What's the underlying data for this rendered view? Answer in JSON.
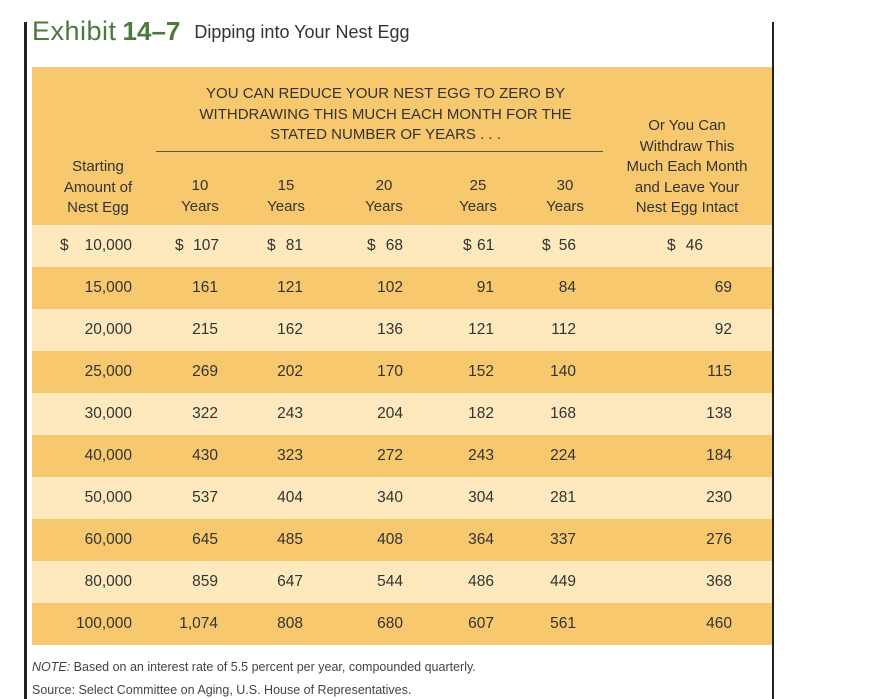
{
  "exhibit": {
    "label": "Exhibit",
    "number": "14–7",
    "title": "Dipping into Your Nest Egg"
  },
  "table": {
    "group_header": [
      "YOU CAN REDUCE YOUR NEST EGG TO ZERO BY",
      "WITHDRAWING THIS MUCH EACH MONTH FOR THE",
      "STATED NUMBER OF YEARS . . ."
    ],
    "starting_header": [
      "Starting",
      "Amount of",
      "Nest Egg"
    ],
    "intact_header": [
      "Or You Can",
      "Withdraw This",
      "Much Each Month",
      "and Leave Your",
      "Nest Egg Intact"
    ],
    "year_columns": [
      {
        "num": "10",
        "unit": "Years"
      },
      {
        "num": "15",
        "unit": "Years"
      },
      {
        "num": "20",
        "unit": "Years"
      },
      {
        "num": "25",
        "unit": "Years"
      },
      {
        "num": "30",
        "unit": "Years"
      }
    ],
    "currency_symbol": "$",
    "rows": [
      {
        "start": "10,000",
        "v10": "107",
        "v15": "81",
        "v20": "68",
        "v25": "61",
        "v30": "56",
        "intact": "46"
      },
      {
        "start": "15,000",
        "v10": "161",
        "v15": "121",
        "v20": "102",
        "v25": "91",
        "v30": "84",
        "intact": "69"
      },
      {
        "start": "20,000",
        "v10": "215",
        "v15": "162",
        "v20": "136",
        "v25": "121",
        "v30": "112",
        "intact": "92"
      },
      {
        "start": "25,000",
        "v10": "269",
        "v15": "202",
        "v20": "170",
        "v25": "152",
        "v30": "140",
        "intact": "115"
      },
      {
        "start": "30,000",
        "v10": "322",
        "v15": "243",
        "v20": "204",
        "v25": "182",
        "v30": "168",
        "intact": "138"
      },
      {
        "start": "40,000",
        "v10": "430",
        "v15": "323",
        "v20": "272",
        "v25": "243",
        "v30": "224",
        "intact": "184"
      },
      {
        "start": "50,000",
        "v10": "537",
        "v15": "404",
        "v20": "340",
        "v25": "304",
        "v30": "281",
        "intact": "230"
      },
      {
        "start": "60,000",
        "v10": "645",
        "v15": "485",
        "v20": "408",
        "v25": "364",
        "v30": "337",
        "intact": "276"
      },
      {
        "start": "80,000",
        "v10": "859",
        "v15": "647",
        "v20": "544",
        "v25": "486",
        "v30": "449",
        "intact": "368"
      },
      {
        "start": "100,000",
        "v10": "1,074",
        "v15": "808",
        "v20": "680",
        "v25": "607",
        "v30": "561",
        "intact": "460"
      }
    ],
    "colors": {
      "header_band": "#f7c86d",
      "light_row": "#fde9bd",
      "dark_row": "#f7c86d",
      "title_green": "#4a7a3e"
    }
  },
  "note": {
    "label": "NOTE:",
    "text": " Based on an interest rate of 5.5 percent per year, compounded quarterly."
  },
  "source": "Source: Select Committee on Aging, U.S. House of Representatives."
}
